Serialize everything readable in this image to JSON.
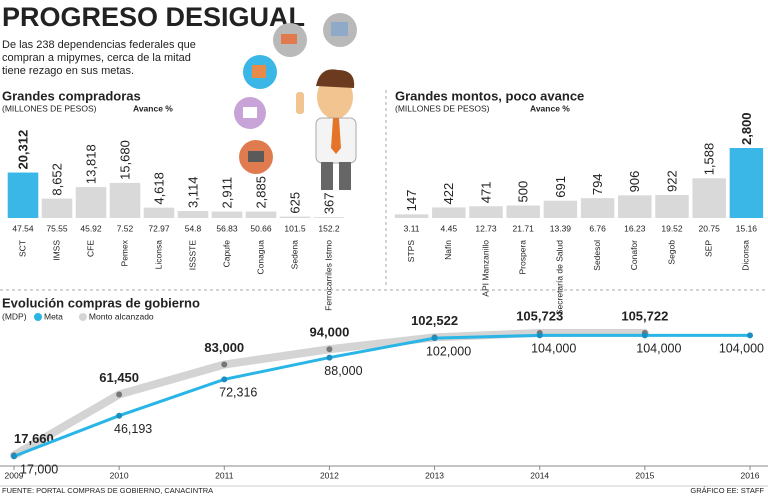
{
  "header": {
    "title": "PROGRESO DESIGUAL",
    "subtitle": [
      "De las 238 dependencias federales que",
      "compran a mipymes, cerca de la mitad",
      "tiene rezago en sus metas."
    ]
  },
  "chart_data": [
    {
      "type": "bar",
      "title": "Grandes compradoras",
      "subtitle": "(MILLONES DE PESOS)",
      "avance_label": "Avance %",
      "categories": [
        "SCT",
        "IMSS",
        "CFE",
        "Pemex",
        "Liconsa",
        "ISSSTE",
        "Capufe",
        "Conagua",
        "Sedena",
        "Ferrocarriles Istmo"
      ],
      "values": [
        20312,
        8652,
        13818,
        15680,
        4618,
        3114,
        2911,
        2885,
        625,
        367
      ],
      "value_labels": [
        "20,312",
        "8,652",
        "13,818",
        "15,680",
        "4,618",
        "3,114",
        "2,911",
        "2,885",
        "625",
        "367"
      ],
      "avance": [
        47.54,
        75.55,
        45.92,
        7.52,
        72.97,
        54.8,
        56.83,
        50.66,
        101.5,
        152.2
      ],
      "colors": [
        "#3ab7e6",
        "#d9d9d9",
        "#d9d9d9",
        "#d9d9d9",
        "#d9d9d9",
        "#d9d9d9",
        "#d9d9d9",
        "#d9d9d9",
        "#d9d9d9",
        "#d9d9d9"
      ],
      "ylim": [
        0,
        21000
      ]
    },
    {
      "type": "bar",
      "title": "Grandes montos, poco avance",
      "subtitle": "(MILLONES DE PESOS)",
      "avance_label": "Avance %",
      "categories": [
        "STPS",
        "Nafin",
        "API Manzanillo",
        "Prospera",
        "Secretaría de Salud",
        "Sedesol",
        "Conafor",
        "Segob",
        "SEP",
        "Diconsa"
      ],
      "values": [
        147,
        422,
        471,
        500,
        691,
        794,
        906,
        922,
        1588,
        2800
      ],
      "value_labels": [
        "147",
        "422",
        "471",
        "500",
        "691",
        "794",
        "906",
        "922",
        "1,588",
        "2,800"
      ],
      "avance": [
        3.11,
        4.45,
        12.73,
        21.71,
        13.39,
        6.76,
        16.23,
        19.52,
        20.75,
        15.16
      ],
      "colors": [
        "#d9d9d9",
        "#d9d9d9",
        "#d9d9d9",
        "#d9d9d9",
        "#d9d9d9",
        "#d9d9d9",
        "#d9d9d9",
        "#d9d9d9",
        "#d9d9d9",
        "#3ab7e6"
      ],
      "ylim": [
        0,
        2800
      ]
    },
    {
      "type": "line",
      "title": "Evolución compras de gobierno",
      "subtitle": "(MDP)",
      "x": [
        2009,
        2010,
        2011,
        2012,
        2013,
        2014,
        2015,
        2016
      ],
      "xlim": [
        2009,
        2016
      ],
      "xticks": [
        2009,
        2010,
        2011,
        2012,
        2013,
        2014,
        2015,
        2016
      ],
      "ylim": [
        10000,
        110000
      ],
      "series": [
        {
          "name": "Meta",
          "color": "#29b6e6",
          "values": [
            17000,
            46193,
            72316,
            88000,
            102000,
            104000,
            104000,
            104000
          ],
          "value_labels": [
            "17,000",
            "46,193",
            "72,316",
            "88,000",
            "102,000",
            "104,000",
            "104,000",
            "104,000"
          ]
        },
        {
          "name": "Monto alcanzado",
          "color": "#d4d4d4",
          "values": [
            17660,
            61450,
            83000,
            94000,
            102522,
            105723,
            105722,
            null
          ],
          "value_labels": [
            "17,660",
            "61,450",
            "83,000",
            "94,000",
            "102,522",
            "105,723",
            "105,722",
            null
          ]
        }
      ]
    }
  ],
  "footer": {
    "source": "FUENTE: PORTAL COMPRAS DE GOBIERNO, CANACINTRA",
    "credit": "GRÁFICO EE: STAFF"
  }
}
